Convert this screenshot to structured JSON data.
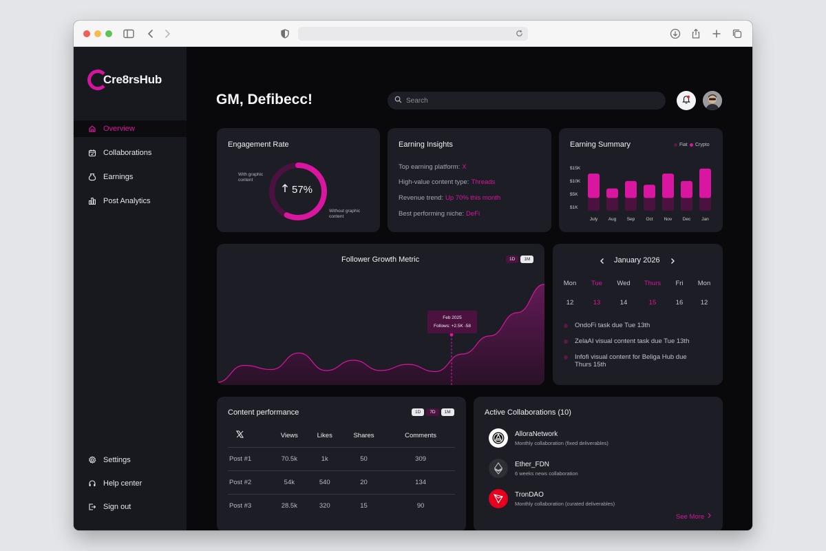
{
  "app": {
    "brand": "Cre8rsHub",
    "greeting": "GM, Defibecc!",
    "search_placeholder": "Search"
  },
  "sidebar": {
    "items": [
      {
        "label": "Overview",
        "icon": "home-icon",
        "active": true
      },
      {
        "label": "Collaborations",
        "icon": "calendar-icon",
        "active": false
      },
      {
        "label": "Earnings",
        "icon": "money-bag-icon",
        "active": false
      },
      {
        "label": "Post Analytics",
        "icon": "bar-chart-icon",
        "active": false
      }
    ],
    "bottom_items": [
      {
        "label": "Settings",
        "icon": "gear-icon"
      },
      {
        "label": "Help center",
        "icon": "headset-icon"
      },
      {
        "label": "Sign out",
        "icon": "sign-out-icon"
      }
    ]
  },
  "engagement": {
    "title": "Engagement Rate",
    "value": "57%",
    "fraction": 0.57,
    "label_with": "With graphic content",
    "label_without": "Without graphic content"
  },
  "insights": {
    "title": "Earning Insights",
    "rows": [
      {
        "label": "Top earning platform:",
        "value": "X"
      },
      {
        "label": "High-value content type:",
        "value": "Threads"
      },
      {
        "label": "Revenue trend:",
        "value": "Up 70% this month"
      },
      {
        "label": "Best performing niche:",
        "value": "DeFi"
      }
    ]
  },
  "summary": {
    "title": "Earning Summary",
    "legend_fiat": "Fiat",
    "legend_crypto": "Crypto",
    "y_ticks": [
      "$15K",
      "$10K",
      "$5K",
      "$1K"
    ]
  },
  "chart_data": [
    {
      "type": "bar",
      "title": "Earning Summary",
      "categories": [
        "July",
        "Aug",
        "Sep",
        "Oct",
        "Nov",
        "Dec",
        "Jan"
      ],
      "ylim": [
        1000,
        15000
      ],
      "y_ticks": [
        "$15K",
        "$10K",
        "$5K",
        "$1K"
      ],
      "series": [
        {
          "name": "Fiat",
          "values": [
            6000,
            6000,
            6000,
            6000,
            6000,
            6000,
            6000
          ]
        },
        {
          "name": "Crypto",
          "values": [
            9000,
            3000,
            6000,
            4500,
            9000,
            6000,
            11000
          ]
        }
      ],
      "legend": "top-right"
    },
    {
      "type": "area",
      "title": "Follower Growth Metric",
      "x": [
        0,
        1,
        2,
        3,
        4,
        5,
        6,
        7,
        8,
        9,
        10,
        11,
        12
      ],
      "values": [
        5,
        38,
        30,
        62,
        28,
        48,
        28,
        40,
        26,
        60,
        95,
        140,
        195
      ],
      "tooltip": {
        "date": "Feb 2025",
        "follows_label": "Follows:",
        "follows_up": "+2.5K",
        "follows_down": "-58"
      }
    }
  ],
  "growth": {
    "title": "Follower Growth Metric",
    "ranges": [
      "1D",
      "1M"
    ],
    "tooltip_date": "Feb 2025",
    "tooltip_follows": "Follows:",
    "tooltip_up": "+2.5K",
    "tooltip_down": "-58"
  },
  "calendar": {
    "month": "January 2026",
    "days": [
      {
        "name": "Mon",
        "num": "12",
        "highlight": false
      },
      {
        "name": "Tue",
        "num": "13",
        "highlight": true
      },
      {
        "name": "Wed",
        "num": "14",
        "highlight": false
      },
      {
        "name": "Thurs",
        "num": "15",
        "highlight": true
      },
      {
        "name": "Fri",
        "num": "16",
        "highlight": false
      },
      {
        "name": "Mon",
        "num": "12",
        "highlight": false
      }
    ],
    "tasks": [
      "OndoFi task due Tue 13th",
      "ZelaAI visual content task due Tue 13th",
      "Infofi visual content for Beliga Hub due Thurs 15th"
    ]
  },
  "performance": {
    "title": "Content performance",
    "ranges": [
      "1D",
      "7D",
      "1M"
    ],
    "columns": [
      "Views",
      "Likes",
      "Shares",
      "Comments"
    ],
    "platform": "X",
    "rows": [
      {
        "post": "Post #1",
        "views": "70.5k",
        "likes": "1k",
        "shares": "50",
        "comments": "309"
      },
      {
        "post": "Post #2",
        "views": "54k",
        "likes": "540",
        "shares": "20",
        "comments": "134"
      },
      {
        "post": "Post #3",
        "views": "28.5k",
        "likes": "320",
        "shares": "15",
        "comments": "90"
      }
    ]
  },
  "collaborations": {
    "title": "Active Collaborations (10)",
    "items": [
      {
        "name": "AlloraNetwork",
        "desc": "Monthly collaboration (fixed deliverables)",
        "icon": "allora-logo-icon"
      },
      {
        "name": "Ether_FDN",
        "desc": "6 weeks news collaboration",
        "icon": "ethereum-logo-icon"
      },
      {
        "name": "TronDAO",
        "desc": "Monthly collaboration (curated deliverables)",
        "icon": "tron-logo-icon"
      }
    ],
    "see_more": "See More"
  },
  "colors": {
    "accent": "#d9169f",
    "accent_dark": "#4b1240",
    "card": "#1d1d25",
    "sidebar": "#18181f",
    "background": "#09090b"
  }
}
